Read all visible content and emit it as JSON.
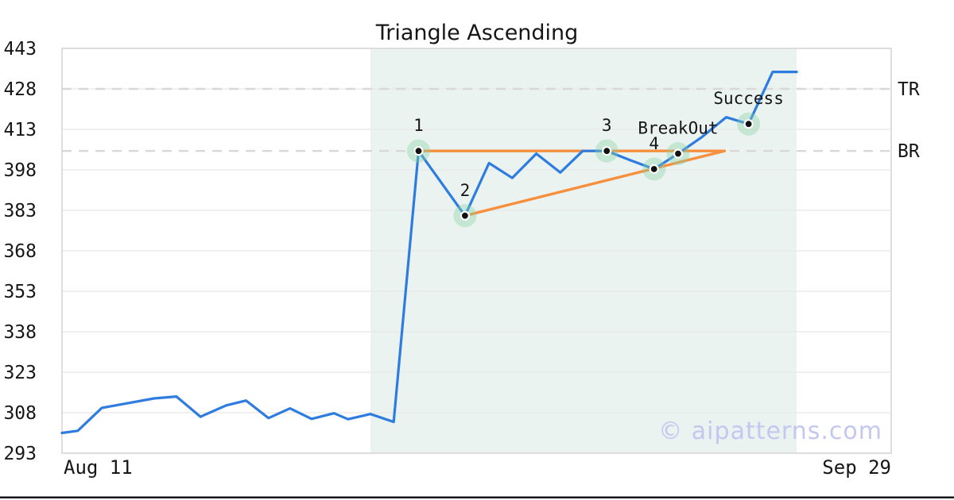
{
  "title": "Triangle Ascending",
  "watermark": "© aipatterns.com",
  "colors": {
    "price_line": "#2e7ce0",
    "trend_line": "#f68f3e",
    "shading": "#eaf3ef",
    "grid": "#e7e7e7",
    "border": "#d6d6d6",
    "dashed_level": "#d8d8d8",
    "text": "#161616",
    "marker_dot": "#111111",
    "marker_halo": "#86d3a5",
    "watermark_color": "#c4c7ef",
    "bottom_rule": "#14171c"
  },
  "chart_data": {
    "type": "line",
    "title": "Triangle Ascending",
    "legend": false,
    "grid": true,
    "x_axis": {
      "left_label": "Aug 11",
      "right_label": "Sep 29"
    },
    "y_axis": {
      "min": 293,
      "max": 443,
      "ticks": [
        443,
        428,
        413,
        398,
        383,
        368,
        353,
        338,
        323,
        308,
        293
      ]
    },
    "series": [
      {
        "name": "price",
        "x_pct": [
          0,
          1.9,
          4.8,
          7.9,
          11.1,
          13.8,
          16.7,
          19.8,
          22.2,
          24.9,
          27.5,
          30.1,
          32.8,
          34.5,
          37.2,
          40.0,
          43.0,
          48.6,
          51.5,
          54.3,
          57.2,
          60.1,
          62.8,
          65.7,
          68.6,
          71.4,
          74.3,
          77.1,
          80.1,
          82.8,
          85.7,
          88.6
        ],
        "values": [
          300.5,
          301.3,
          309.8,
          311.5,
          313.3,
          314,
          306.5,
          310.7,
          312.5,
          306,
          309.6,
          305.7,
          307.8,
          305.6,
          307.5,
          304.6,
          405,
          381,
          400.5,
          395,
          404,
          397,
          405,
          405,
          401.5,
          398.3,
          404,
          410,
          417.5,
          415,
          434.3,
          434.3
        ]
      }
    ],
    "levels": [
      {
        "name": "TR",
        "value": 428
      },
      {
        "name": "BR",
        "value": 405
      }
    ],
    "trendlines": [
      {
        "name": "resistance",
        "x1_pct": 43.0,
        "v1": 405,
        "x2_pct": 79.9,
        "v2": 405
      },
      {
        "name": "support",
        "x1_pct": 48.6,
        "v1": 381,
        "x2_pct": 79.9,
        "v2": 405
      }
    ],
    "markers": [
      {
        "label": "1",
        "x_pct": 43.0,
        "value": 405
      },
      {
        "label": "2",
        "x_pct": 48.6,
        "value": 381
      },
      {
        "label": "3",
        "x_pct": 65.7,
        "value": 405
      },
      {
        "label": "4",
        "x_pct": 71.4,
        "value": 398.3
      },
      {
        "label": "BreakOut",
        "x_pct": 74.3,
        "value": 404
      },
      {
        "label": "Success",
        "x_pct": 82.8,
        "value": 415
      }
    ],
    "shaded_region": {
      "from_pct": 37.2,
      "to_pct": 88.6
    }
  }
}
